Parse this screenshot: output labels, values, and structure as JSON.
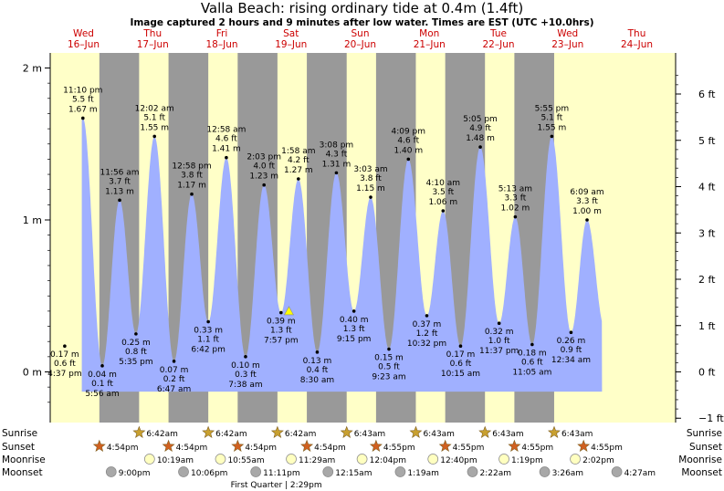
{
  "title": "Valla Beach: rising  ordinary tide at 0.4m (1.4ft)",
  "subtitle": "Image captured 2 hours and 9 minutes after low water. Times are EST (UTC +10.0hrs)",
  "colors": {
    "day_bg": "#ffffc8",
    "night_bg": "#999999",
    "tide_fill": "#a0b0ff",
    "day_label": "#cc0000",
    "sun": "#c8a030",
    "sunset": "#d06020",
    "moonrise": "#ffffc0",
    "moonset": "#a8a8a8",
    "marker": "#ffff00"
  },
  "days": [
    {
      "name": "Wed",
      "date": "16–Jun"
    },
    {
      "name": "Thu",
      "date": "17–Jun"
    },
    {
      "name": "Fri",
      "date": "18–Jun"
    },
    {
      "name": "Sat",
      "date": "19–Jun"
    },
    {
      "name": "Sun",
      "date": "20–Jun"
    },
    {
      "name": "Mon",
      "date": "21–Jun"
    },
    {
      "name": "Tue",
      "date": "22–Jun"
    },
    {
      "name": "Wed",
      "date": "23–Jun"
    },
    {
      "name": "Thu",
      "date": "24–Jun"
    }
  ],
  "chart_data": {
    "type": "area",
    "title": "Valla Beach: rising  ordinary tide at 0.4m (1.4ft)",
    "y_left": {
      "unit": "m",
      "ticks": [
        "0 m",
        "1 m",
        "2 m"
      ],
      "range": [
        -0.2,
        2.05
      ]
    },
    "y_right": {
      "unit": "ft",
      "ticks": [
        "−1 ft",
        "0 ft",
        "1 ft",
        "2 ft",
        "3 ft",
        "4 ft",
        "5 ft",
        "6 ft"
      ]
    },
    "x_range": [
      0,
      8.0
    ],
    "current": {
      "t": 3.445,
      "h": 0.4
    },
    "extremes": [
      {
        "t": 0.203,
        "h": 0.17,
        "type": "low",
        "time": "4:37 pm",
        "ft": "0.6 ft",
        "m": "0.17 m"
      },
      {
        "t": 0.466,
        "h": 1.67,
        "type": "high",
        "time": "11:10 pm",
        "ft": "5.5 ft",
        "m": "1.67 m"
      },
      {
        "t": 0.746,
        "h": 0.04,
        "type": "low",
        "time": "5:56 am",
        "ft": "0.1 ft",
        "m": "0.04 m"
      },
      {
        "t": 0.997,
        "h": 1.13,
        "type": "high",
        "time": "11:56 am",
        "ft": "3.7 ft",
        "m": "1.13 m"
      },
      {
        "t": 1.233,
        "h": 0.25,
        "type": "low",
        "time": "5:35 pm",
        "ft": "0.8 ft",
        "m": "0.25 m"
      },
      {
        "t": 1.501,
        "h": 1.55,
        "type": "high",
        "time": "12:02 am",
        "ft": "5.1 ft",
        "m": "1.55 m"
      },
      {
        "t": 1.783,
        "h": 0.07,
        "type": "low",
        "time": "6:47 am",
        "ft": "0.2 ft",
        "m": "0.07 m"
      },
      {
        "t": 2.04,
        "h": 1.17,
        "type": "high",
        "time": "12:58 pm",
        "ft": "3.8 ft",
        "m": "1.17 m"
      },
      {
        "t": 2.279,
        "h": 0.33,
        "type": "low",
        "time": "6:42 pm",
        "ft": "1.1 ft",
        "m": "0.33 m"
      },
      {
        "t": 2.54,
        "h": 1.41,
        "type": "high",
        "time": "12:58 am",
        "ft": "4.6 ft",
        "m": "1.41 m"
      },
      {
        "t": 2.818,
        "h": 0.1,
        "type": "low",
        "time": "7:38 am",
        "ft": "0.3 ft",
        "m": "0.10 m"
      },
      {
        "t": 3.085,
        "h": 1.23,
        "type": "high",
        "time": "2:03 pm",
        "ft": "4.0 ft",
        "m": "1.23 m"
      },
      {
        "t": 3.331,
        "h": 0.39,
        "type": "low",
        "time": "7:57 pm",
        "ft": "1.3 ft",
        "m": "0.39 m"
      },
      {
        "t": 3.582,
        "h": 1.27,
        "type": "high",
        "time": "1:58 am",
        "ft": "4.2 ft",
        "m": "1.27 m"
      },
      {
        "t": 3.854,
        "h": 0.13,
        "type": "low",
        "time": "8:30 am",
        "ft": "0.4 ft",
        "m": "0.13 m"
      },
      {
        "t": 4.131,
        "h": 1.31,
        "type": "high",
        "time": "3:08 pm",
        "ft": "4.3 ft",
        "m": "1.31 m"
      },
      {
        "t": 4.385,
        "h": 0.4,
        "type": "low",
        "time": "9:15 pm",
        "ft": "1.3 ft",
        "m": "0.40 m"
      },
      {
        "t": 4.627,
        "h": 1.15,
        "type": "high",
        "time": "3:03 am",
        "ft": "3.8 ft",
        "m": "1.15 m"
      },
      {
        "t": 4.891,
        "h": 0.15,
        "type": "low",
        "time": "9:23 am",
        "ft": "0.5 ft",
        "m": "0.15 m"
      },
      {
        "t": 5.172,
        "h": 1.4,
        "type": "high",
        "time": "4:09 pm",
        "ft": "4.6 ft",
        "m": "1.40 m"
      },
      {
        "t": 5.439,
        "h": 0.37,
        "type": "low",
        "time": "10:32 pm",
        "ft": "1.2 ft",
        "m": "0.37 m"
      },
      {
        "t": 5.674,
        "h": 1.06,
        "type": "high",
        "time": "4:10 am",
        "ft": "3.5 ft",
        "m": "1.06 m"
      },
      {
        "t": 5.927,
        "h": 0.17,
        "type": "low",
        "time": "10:15 am",
        "ft": "0.6 ft",
        "m": "0.17 m"
      },
      {
        "t": 6.212,
        "h": 1.48,
        "type": "high",
        "time": "5:05 pm",
        "ft": "4.9 ft",
        "m": "1.48 m"
      },
      {
        "t": 6.484,
        "h": 0.32,
        "type": "low",
        "time": "11:37 pm",
        "ft": "1.0 ft",
        "m": "0.32 m"
      },
      {
        "t": 6.718,
        "h": 1.02,
        "type": "high",
        "time": "5:13 am",
        "ft": "3.3 ft",
        "m": "1.02 m"
      },
      {
        "t": 6.962,
        "h": 0.18,
        "type": "low",
        "time": "11:05 am",
        "ft": "0.6 ft",
        "m": "0.18 m"
      },
      {
        "t": 7.246,
        "h": 1.55,
        "type": "high",
        "time": "5:55 pm",
        "ft": "5.1 ft",
        "m": "1.55 m"
      },
      {
        "t": 7.524,
        "h": 0.26,
        "type": "low",
        "time": "12:34 am",
        "ft": "0.9 ft",
        "m": "0.26 m"
      },
      {
        "t": 7.756,
        "h": 1.0,
        "type": "high",
        "time": "6:09 am",
        "ft": "3.3 ft",
        "m": "1.00 m"
      }
    ]
  },
  "rows": {
    "sunrise": {
      "label": "Sunrise",
      "events": [
        {
          "t": 1.279,
          "text": "6:42am"
        },
        {
          "t": 2.279,
          "text": "6:42am"
        },
        {
          "t": 3.279,
          "text": "6:42am"
        },
        {
          "t": 4.28,
          "text": "6:43am"
        },
        {
          "t": 5.28,
          "text": "6:43am"
        },
        {
          "t": 6.28,
          "text": "6:43am"
        },
        {
          "t": 7.28,
          "text": "6:43am"
        }
      ]
    },
    "sunset": {
      "label": "Sunset",
      "events": [
        {
          "t": 0.704,
          "text": "4:54pm"
        },
        {
          "t": 1.704,
          "text": "4:54pm"
        },
        {
          "t": 2.704,
          "text": "4:54pm"
        },
        {
          "t": 3.704,
          "text": "4:54pm"
        },
        {
          "t": 4.705,
          "text": "4:55pm"
        },
        {
          "t": 5.705,
          "text": "4:55pm"
        },
        {
          "t": 6.705,
          "text": "4:55pm"
        },
        {
          "t": 7.705,
          "text": "4:55pm"
        }
      ]
    },
    "moonrise": {
      "label": "Moonrise",
      "events": [
        {
          "t": 1.43,
          "text": "10:19am"
        },
        {
          "t": 2.455,
          "text": "10:55am"
        },
        {
          "t": 3.479,
          "text": "11:29am"
        },
        {
          "t": 4.503,
          "text": "12:04pm"
        },
        {
          "t": 5.528,
          "text": "12:40pm"
        },
        {
          "t": 6.555,
          "text": "1:19pm"
        },
        {
          "t": 7.585,
          "text": "2:02pm"
        }
      ]
    },
    "moonset": {
      "label": "Moonset",
      "events": [
        {
          "t": 0.875,
          "text": "9:00pm"
        },
        {
          "t": 1.921,
          "text": "10:06pm"
        },
        {
          "t": 2.966,
          "text": "11:11pm"
        },
        {
          "t": 4.01,
          "text": "12:15am"
        },
        {
          "t": 5.055,
          "text": "1:19am"
        },
        {
          "t": 6.099,
          "text": "2:22am"
        },
        {
          "t": 7.143,
          "text": "3:26am"
        },
        {
          "t": 8.186,
          "text": "4:27am"
        }
      ]
    }
  },
  "moon_phase": {
    "t": 3.104,
    "text": "First Quarter | 2:29pm"
  }
}
